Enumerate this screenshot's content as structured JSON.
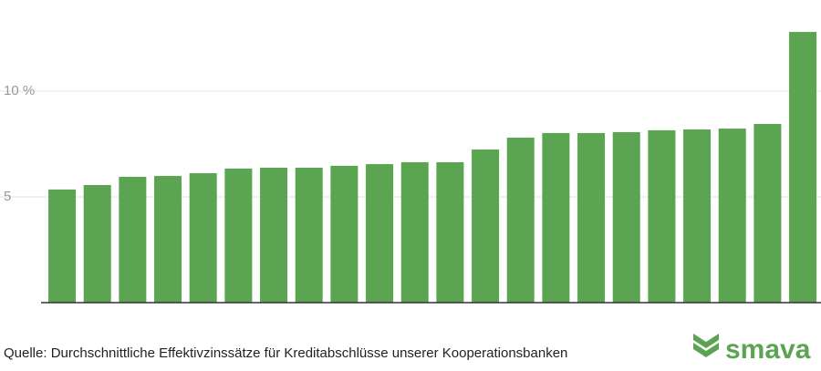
{
  "chart_data": {
    "type": "bar",
    "values": [
      5.35,
      5.56,
      5.95,
      5.99,
      6.12,
      6.34,
      6.38,
      6.38,
      6.47,
      6.55,
      6.64,
      6.64,
      7.24,
      7.8,
      8.02,
      8.02,
      8.06,
      8.15,
      8.19,
      8.23,
      8.45,
      12.8
    ],
    "color": "#5ba552",
    "ylim": [
      0,
      13.5
    ],
    "yticks": [
      5,
      {
        "value": 10,
        "label": "10 %"
      }
    ],
    "grid": true
  },
  "footer": {
    "source": "Quelle: Durchschnittliche Effektivzinssätze für Kreditabschlüsse unserer Kooperationsbanken",
    "brand": "smava"
  }
}
